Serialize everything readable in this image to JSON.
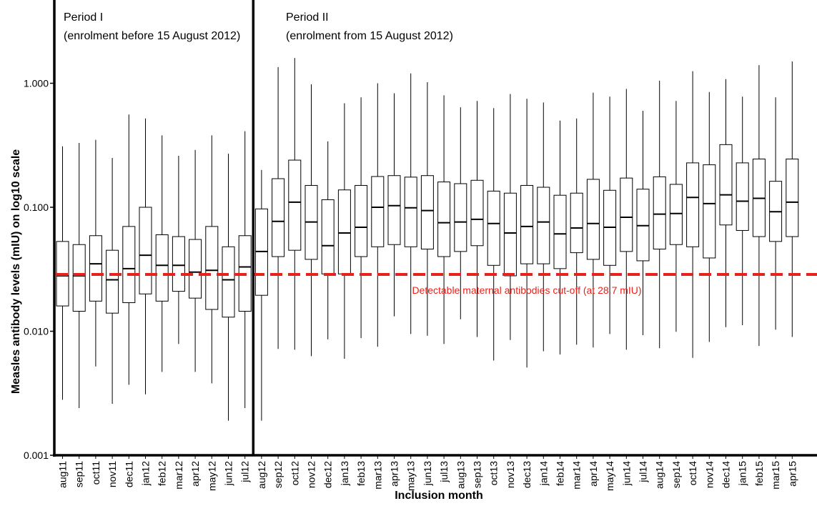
{
  "chart_data": {
    "type": "box",
    "xlabel": "Inclusion month",
    "ylabel": "Measles antibody levels (mIU) on log10 scale",
    "y_scale": "log10",
    "ylim": [
      0.001,
      4.5
    ],
    "y_ticks": [
      0.001,
      0.01,
      0.1,
      1.0
    ],
    "y_tick_labels": [
      "0.001",
      "0.010",
      "0.100",
      "1.000"
    ],
    "grid": false,
    "periods": [
      {
        "label": "Period I",
        "sublabel": "(enrolment before 15 August 2012)"
      },
      {
        "label": "Period II",
        "sublabel": "(enrolment from 15 August 2012)"
      }
    ],
    "cutoff": {
      "value": 0.0287,
      "label": "Detectable maternal antibodies cut-off (at 28.7 mIU)",
      "color": "#e8221b"
    },
    "categories": [
      "aug11",
      "sep11",
      "oct11",
      "nov11",
      "dec11",
      "jan12",
      "feb12",
      "mar12",
      "apr12",
      "may12",
      "jun12",
      "jul12",
      "aug12",
      "sep12",
      "oct12",
      "nov12",
      "dec12",
      "jan13",
      "feb13",
      "mar13",
      "apr13",
      "may13",
      "jun13",
      "jul13",
      "aug13",
      "sep13",
      "oct13",
      "nov13",
      "dec13",
      "jan14",
      "feb14",
      "mar14",
      "apr14",
      "may14",
      "jun14",
      "jul14",
      "aug14",
      "sep14",
      "oct14",
      "nov14",
      "dec14",
      "jan15",
      "feb15",
      "mar15",
      "apr15"
    ],
    "boxes": [
      {
        "min": 0.0028,
        "q1": 0.016,
        "median": 0.028,
        "q3": 0.053,
        "max": 0.31
      },
      {
        "min": 0.0024,
        "q1": 0.0145,
        "median": 0.028,
        "q3": 0.05,
        "max": 0.33
      },
      {
        "min": 0.0052,
        "q1": 0.0175,
        "median": 0.035,
        "q3": 0.059,
        "max": 0.35
      },
      {
        "min": 0.0026,
        "q1": 0.014,
        "median": 0.026,
        "q3": 0.045,
        "max": 0.25
      },
      {
        "min": 0.0037,
        "q1": 0.017,
        "median": 0.032,
        "q3": 0.07,
        "max": 0.56
      },
      {
        "min": 0.0031,
        "q1": 0.02,
        "median": 0.041,
        "q3": 0.1,
        "max": 0.52
      },
      {
        "min": 0.0047,
        "q1": 0.0175,
        "median": 0.034,
        "q3": 0.06,
        "max": 0.38
      },
      {
        "min": 0.0079,
        "q1": 0.021,
        "median": 0.034,
        "q3": 0.058,
        "max": 0.26
      },
      {
        "min": 0.0047,
        "q1": 0.0185,
        "median": 0.03,
        "q3": 0.055,
        "max": 0.29
      },
      {
        "min": 0.0038,
        "q1": 0.015,
        "median": 0.031,
        "q3": 0.07,
        "max": 0.38
      },
      {
        "min": 0.0019,
        "q1": 0.013,
        "median": 0.026,
        "q3": 0.048,
        "max": 0.27
      },
      {
        "min": 0.0024,
        "q1": 0.0145,
        "median": 0.033,
        "q3": 0.059,
        "max": 0.41
      },
      {
        "min": 0.0019,
        "q1": 0.0195,
        "median": 0.044,
        "q3": 0.097,
        "max": 0.2
      },
      {
        "min": 0.0072,
        "q1": 0.04,
        "median": 0.077,
        "q3": 0.17,
        "max": 1.35
      },
      {
        "min": 0.0071,
        "q1": 0.045,
        "median": 0.11,
        "q3": 0.24,
        "max": 1.6
      },
      {
        "min": 0.0063,
        "q1": 0.038,
        "median": 0.076,
        "q3": 0.15,
        "max": 0.98
      },
      {
        "min": 0.0086,
        "q1": 0.029,
        "median": 0.049,
        "q3": 0.115,
        "max": 0.34
      },
      {
        "min": 0.006,
        "q1": 0.029,
        "median": 0.062,
        "q3": 0.138,
        "max": 0.69
      },
      {
        "min": 0.0088,
        "q1": 0.04,
        "median": 0.069,
        "q3": 0.15,
        "max": 0.77
      },
      {
        "min": 0.0075,
        "q1": 0.048,
        "median": 0.1,
        "q3": 0.177,
        "max": 1.0
      },
      {
        "min": 0.0132,
        "q1": 0.05,
        "median": 0.103,
        "q3": 0.18,
        "max": 0.83
      },
      {
        "min": 0.0095,
        "q1": 0.048,
        "median": 0.099,
        "q3": 0.175,
        "max": 1.2
      },
      {
        "min": 0.0092,
        "q1": 0.046,
        "median": 0.094,
        "q3": 0.18,
        "max": 1.02
      },
      {
        "min": 0.0079,
        "q1": 0.04,
        "median": 0.075,
        "q3": 0.16,
        "max": 0.8
      },
      {
        "min": 0.0125,
        "q1": 0.044,
        "median": 0.076,
        "q3": 0.155,
        "max": 0.64
      },
      {
        "min": 0.009,
        "q1": 0.049,
        "median": 0.08,
        "q3": 0.165,
        "max": 0.72
      },
      {
        "min": 0.0058,
        "q1": 0.034,
        "median": 0.074,
        "q3": 0.135,
        "max": 0.63
      },
      {
        "min": 0.0085,
        "q1": 0.028,
        "median": 0.062,
        "q3": 0.13,
        "max": 0.82
      },
      {
        "min": 0.0051,
        "q1": 0.035,
        "median": 0.07,
        "q3": 0.15,
        "max": 0.75
      },
      {
        "min": 0.0069,
        "q1": 0.035,
        "median": 0.076,
        "q3": 0.145,
        "max": 0.7
      },
      {
        "min": 0.0065,
        "q1": 0.032,
        "median": 0.061,
        "q3": 0.125,
        "max": 0.5
      },
      {
        "min": 0.0078,
        "q1": 0.043,
        "median": 0.068,
        "q3": 0.13,
        "max": 0.52
      },
      {
        "min": 0.0074,
        "q1": 0.038,
        "median": 0.074,
        "q3": 0.168,
        "max": 0.84
      },
      {
        "min": 0.0095,
        "q1": 0.034,
        "median": 0.069,
        "q3": 0.137,
        "max": 0.78
      },
      {
        "min": 0.0071,
        "q1": 0.044,
        "median": 0.083,
        "q3": 0.172,
        "max": 0.9
      },
      {
        "min": 0.0093,
        "q1": 0.037,
        "median": 0.071,
        "q3": 0.14,
        "max": 0.6
      },
      {
        "min": 0.0073,
        "q1": 0.046,
        "median": 0.088,
        "q3": 0.176,
        "max": 1.05
      },
      {
        "min": 0.0099,
        "q1": 0.05,
        "median": 0.089,
        "q3": 0.153,
        "max": 0.72
      },
      {
        "min": 0.0061,
        "q1": 0.048,
        "median": 0.12,
        "q3": 0.228,
        "max": 1.25
      },
      {
        "min": 0.0082,
        "q1": 0.039,
        "median": 0.107,
        "q3": 0.22,
        "max": 0.85
      },
      {
        "min": 0.0108,
        "q1": 0.072,
        "median": 0.126,
        "q3": 0.32,
        "max": 1.08
      },
      {
        "min": 0.0112,
        "q1": 0.065,
        "median": 0.112,
        "q3": 0.228,
        "max": 0.78
      },
      {
        "min": 0.0076,
        "q1": 0.058,
        "median": 0.118,
        "q3": 0.245,
        "max": 1.4
      },
      {
        "min": 0.0103,
        "q1": 0.053,
        "median": 0.092,
        "q3": 0.162,
        "max": 0.77
      },
      {
        "min": 0.009,
        "q1": 0.058,
        "median": 0.11,
        "q3": 0.245,
        "max": 1.5
      }
    ]
  }
}
